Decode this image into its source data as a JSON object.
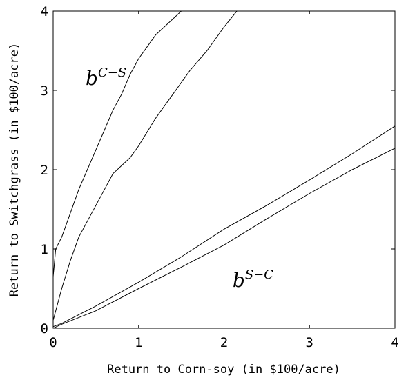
{
  "chart_data": {
    "type": "line",
    "xlabel": "Return to Corn-soy (in $100/acre)",
    "ylabel": "Return to Switchgrass (in $100/acre)",
    "xlim": [
      0,
      4
    ],
    "ylim": [
      0,
      4
    ],
    "xticks": [
      "0",
      "1",
      "2",
      "3",
      "4"
    ],
    "yticks": [
      "0",
      "1",
      "2",
      "3",
      "4"
    ],
    "grid": false,
    "annotations": [
      {
        "base": "b",
        "sup": "C−S",
        "x": 0.38,
        "y": 3.07
      },
      {
        "base": "b",
        "sup": "S−C",
        "x": 2.1,
        "y": 0.52
      }
    ],
    "series": [
      {
        "color": "#000000",
        "x": [
          0,
          0.03,
          0.1,
          0.2,
          0.3,
          0.4,
          0.5,
          0.6,
          0.7,
          0.8,
          0.9,
          1.0,
          1.1,
          1.2,
          1.3,
          1.4,
          1.5,
          1.55
        ],
        "y": [
          0.65,
          1.0,
          1.15,
          1.45,
          1.75,
          2.0,
          2.25,
          2.5,
          2.75,
          2.95,
          3.2,
          3.4,
          3.55,
          3.7,
          3.8,
          3.9,
          4.0,
          4.0
        ]
      },
      {
        "color": "#000000",
        "x": [
          0,
          0.1,
          0.2,
          0.3,
          0.4,
          0.5,
          0.6,
          0.7,
          0.8,
          0.9,
          1.0,
          1.2,
          1.4,
          1.6,
          1.8,
          2.0,
          2.15
        ],
        "y": [
          0.1,
          0.5,
          0.85,
          1.15,
          1.35,
          1.55,
          1.75,
          1.95,
          2.05,
          2.15,
          2.3,
          2.65,
          2.95,
          3.25,
          3.5,
          3.8,
          4.0
        ]
      },
      {
        "color": "#000000",
        "x": [
          0,
          0.1,
          0.5,
          1.0,
          1.5,
          2.0,
          2.5,
          3.0,
          3.5,
          4.0
        ],
        "y": [
          0.02,
          0.06,
          0.28,
          0.58,
          0.9,
          1.25,
          1.55,
          1.87,
          2.2,
          2.55
        ]
      },
      {
        "color": "#000000",
        "x": [
          0,
          0.1,
          0.5,
          1.0,
          1.5,
          2.0,
          2.5,
          3.0,
          3.5,
          4.0
        ],
        "y": [
          0.0,
          0.05,
          0.22,
          0.5,
          0.77,
          1.05,
          1.38,
          1.7,
          2.0,
          2.27
        ]
      }
    ]
  }
}
